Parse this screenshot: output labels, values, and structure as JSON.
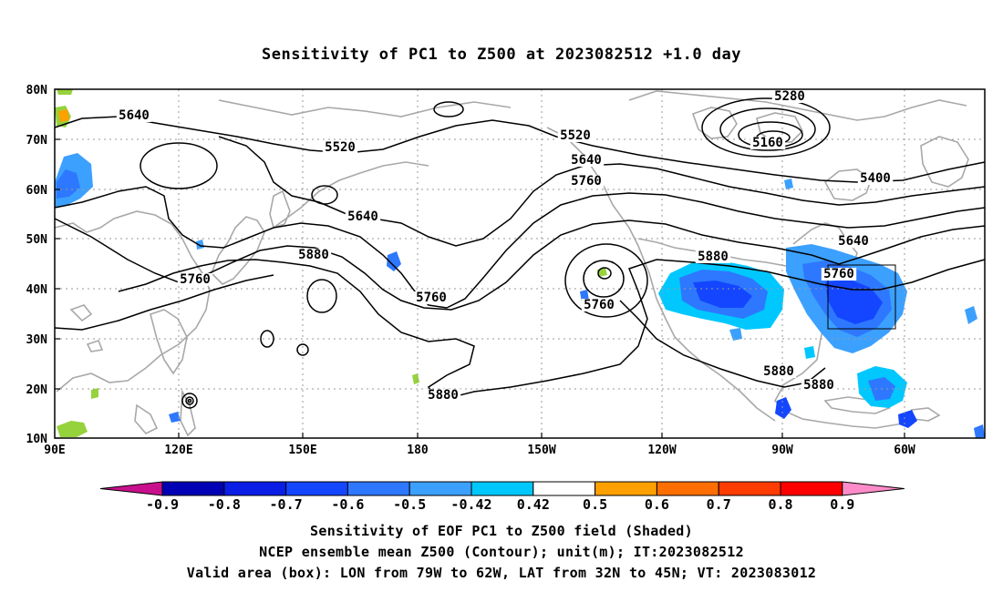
{
  "title": "Sensitivity of PC1 to Z500 at 2023082512 +1.0 day",
  "map": {
    "lat_labels": [
      "80N",
      "70N",
      "60N",
      "50N",
      "40N",
      "30N",
      "20N",
      "10N"
    ],
    "lon_labels": [
      "90E",
      "120E",
      "150E",
      "180",
      "150W",
      "120W",
      "90W",
      "60W"
    ],
    "contour_labels": [
      {
        "text": "5640"
      },
      {
        "text": "5520"
      },
      {
        "text": "5640"
      },
      {
        "text": "5880"
      },
      {
        "text": "5760"
      },
      {
        "text": "5760"
      },
      {
        "text": "5520"
      },
      {
        "text": "5640"
      },
      {
        "text": "5760"
      },
      {
        "text": "5760"
      },
      {
        "text": "5880"
      },
      {
        "text": "5280"
      },
      {
        "text": "5160"
      },
      {
        "text": "5400"
      },
      {
        "text": "5640"
      },
      {
        "text": "5760"
      },
      {
        "text": "5880"
      },
      {
        "text": "5880"
      },
      {
        "text": "5880"
      }
    ],
    "box": {
      "lon_from": "79W",
      "lon_to": "62W",
      "lat_from": "32N",
      "lat_to": "45N"
    }
  },
  "colorbar": {
    "labels": [
      "-0.9",
      "-0.8",
      "-0.7",
      "-0.6",
      "-0.5",
      "-0.42",
      "0.42",
      "0.5",
      "0.6",
      "0.7",
      "0.8",
      "0.9"
    ],
    "colors": {
      "left_tip": "#c8108c",
      "segments": [
        "#0000b4",
        "#0a1ee6",
        "#1446ff",
        "#2d78ff",
        "#3ca0ff",
        "#00c8ff",
        "#ffffff",
        "#96d23c",
        "#ffa000",
        "#ff6e00",
        "#ff3c00",
        "#ff0000"
      ],
      "right_tip": "#ff8cc8"
    }
  },
  "captions": {
    "line1": "Sensitivity of EOF PC1 to Z500 field (Shaded)",
    "line2": "NCEP ensemble mean Z500 (Contour); unit(m); IT:2023082512",
    "line3": "Valid area (box): LON from 79W to 62W, LAT from 32N to 45N; VT: 2023083012"
  }
}
